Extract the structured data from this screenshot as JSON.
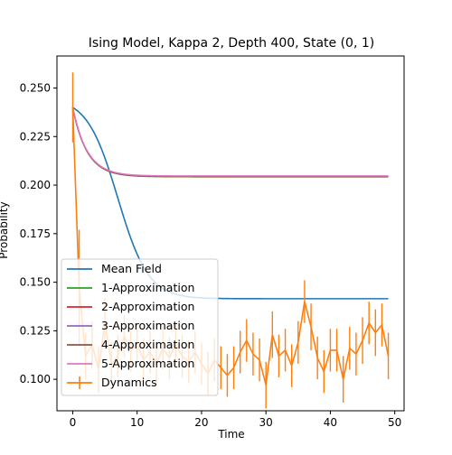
{
  "chart_data": {
    "type": "line",
    "title": "Ising Model, Kappa 2, Depth 400, State (0, 1)",
    "xlabel": "Time",
    "ylabel": "Probability",
    "xlim": [
      -2.45,
      51.45
    ],
    "ylim": [
      0.0838,
      0.2665
    ],
    "xticks": [
      0,
      10,
      20,
      30,
      40,
      50
    ],
    "yticks": [
      0.1,
      0.125,
      0.15,
      0.175,
      0.2,
      0.225,
      0.25
    ],
    "ytick_labels": [
      "0.100",
      "0.125",
      "0.150",
      "0.175",
      "0.200",
      "0.225",
      "0.250"
    ],
    "grid": false,
    "legend_position": "lower-left",
    "mean_field": {
      "name": "Mean Field",
      "color": "#1f77b4",
      "start": 0.24,
      "end": 0.1415,
      "midpoint": 7.0,
      "steepness": 0.42
    },
    "approximations": [
      {
        "name": "1-Approximation",
        "color": "#2ca02c"
      },
      {
        "name": "2-Approximation",
        "color": "#d62728"
      },
      {
        "name": "3-Approximation",
        "color": "#9467bd"
      },
      {
        "name": "4-Approximation",
        "color": "#8c564b"
      },
      {
        "name": "5-Approximation",
        "color": "#e377c2"
      }
    ],
    "approx_curve": {
      "start": 0.24,
      "end": 0.2045,
      "rate": 0.45
    },
    "dynamics": {
      "name": "Dynamics",
      "color": "#ff7f0e",
      "x": [
        0,
        1,
        2,
        3,
        4,
        5,
        6,
        7,
        8,
        9,
        10,
        11,
        12,
        13,
        14,
        15,
        16,
        17,
        18,
        19,
        20,
        21,
        22,
        23,
        24,
        25,
        26,
        27,
        28,
        29,
        30,
        31,
        32,
        33,
        34,
        35,
        36,
        37,
        38,
        39,
        40,
        41,
        42,
        43,
        44,
        45,
        46,
        47,
        48,
        49
      ],
      "y": [
        0.24,
        0.147,
        0.112,
        0.118,
        0.105,
        0.13,
        0.108,
        0.112,
        0.122,
        0.115,
        0.118,
        0.11,
        0.114,
        0.108,
        0.116,
        0.111,
        0.118,
        0.112,
        0.109,
        0.114,
        0.108,
        0.103,
        0.11,
        0.106,
        0.102,
        0.106,
        0.114,
        0.12,
        0.113,
        0.11,
        0.097,
        0.123,
        0.112,
        0.115,
        0.107,
        0.119,
        0.14,
        0.127,
        0.111,
        0.104,
        0.115,
        0.115,
        0.1,
        0.116,
        0.113,
        0.12,
        0.129,
        0.124,
        0.128,
        0.112
      ],
      "err": [
        0.018,
        0.03,
        0.012,
        0.012,
        0.012,
        0.012,
        0.011,
        0.011,
        0.011,
        0.011,
        0.011,
        0.011,
        0.011,
        0.011,
        0.011,
        0.011,
        0.011,
        0.011,
        0.011,
        0.011,
        0.011,
        0.011,
        0.011,
        0.011,
        0.011,
        0.011,
        0.011,
        0.011,
        0.011,
        0.011,
        0.012,
        0.012,
        0.011,
        0.011,
        0.011,
        0.011,
        0.011,
        0.012,
        0.011,
        0.011,
        0.011,
        0.011,
        0.012,
        0.011,
        0.011,
        0.012,
        0.011,
        0.012,
        0.011,
        0.012
      ]
    }
  }
}
